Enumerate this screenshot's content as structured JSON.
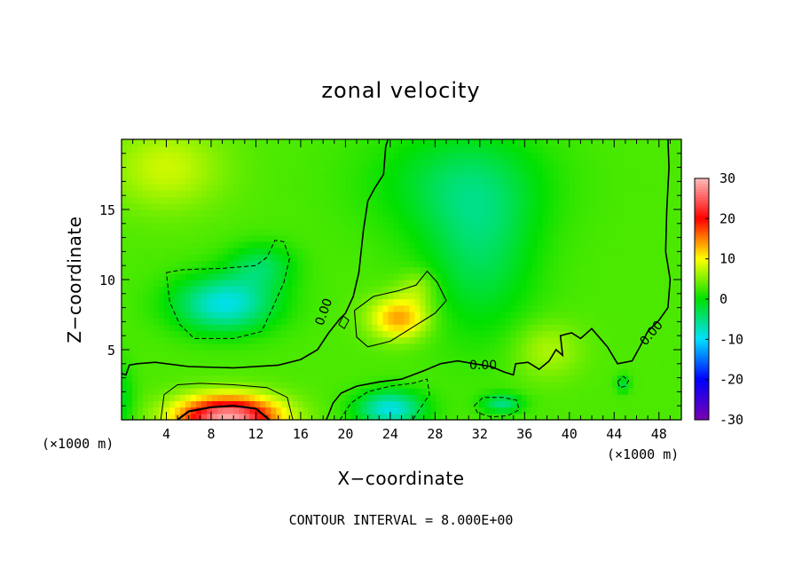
{
  "chart_data": {
    "type": "heatmap",
    "title": "zonal velocity",
    "xlabel": "X−coordinate",
    "ylabel": "Z−coordinate",
    "x_unit": "(×1000 m)",
    "xlim": [
      0,
      50
    ],
    "ylim": [
      0,
      20
    ],
    "x_ticks": [
      4,
      8,
      12,
      16,
      20,
      24,
      28,
      32,
      36,
      40,
      44,
      48
    ],
    "y_ticks": [
      5,
      10,
      15
    ],
    "colorbar": {
      "ticks": [
        30,
        20,
        10,
        0,
        -10,
        -20,
        -30
      ],
      "range": [
        -30,
        30
      ],
      "colors": [
        "#7a00b0",
        "#0000ff",
        "#00e0ff",
        "#00e000",
        "#ffff00",
        "#ff0000",
        "#ffbbbb"
      ]
    },
    "contour_interval": 8.0,
    "contour_labels": [
      "0.00",
      "0.00",
      "0.00"
    ],
    "features": [
      {
        "kind": "max",
        "x": 10,
        "z": 0.5,
        "value": 26
      },
      {
        "kind": "min",
        "x": 9,
        "z": 8.3,
        "value": -12
      },
      {
        "kind": "min",
        "x": 24,
        "z": 1.0,
        "value": -12
      },
      {
        "kind": "max",
        "x": 24.5,
        "z": 7.2,
        "value": 11
      },
      {
        "kind": "min",
        "x": 34,
        "z": 1.2,
        "value": -8
      },
      {
        "kind": "min",
        "x": 44.8,
        "z": 2.5,
        "value": -6
      }
    ]
  },
  "footer": "CONTOUR INTERVAL = 8.000E+00"
}
